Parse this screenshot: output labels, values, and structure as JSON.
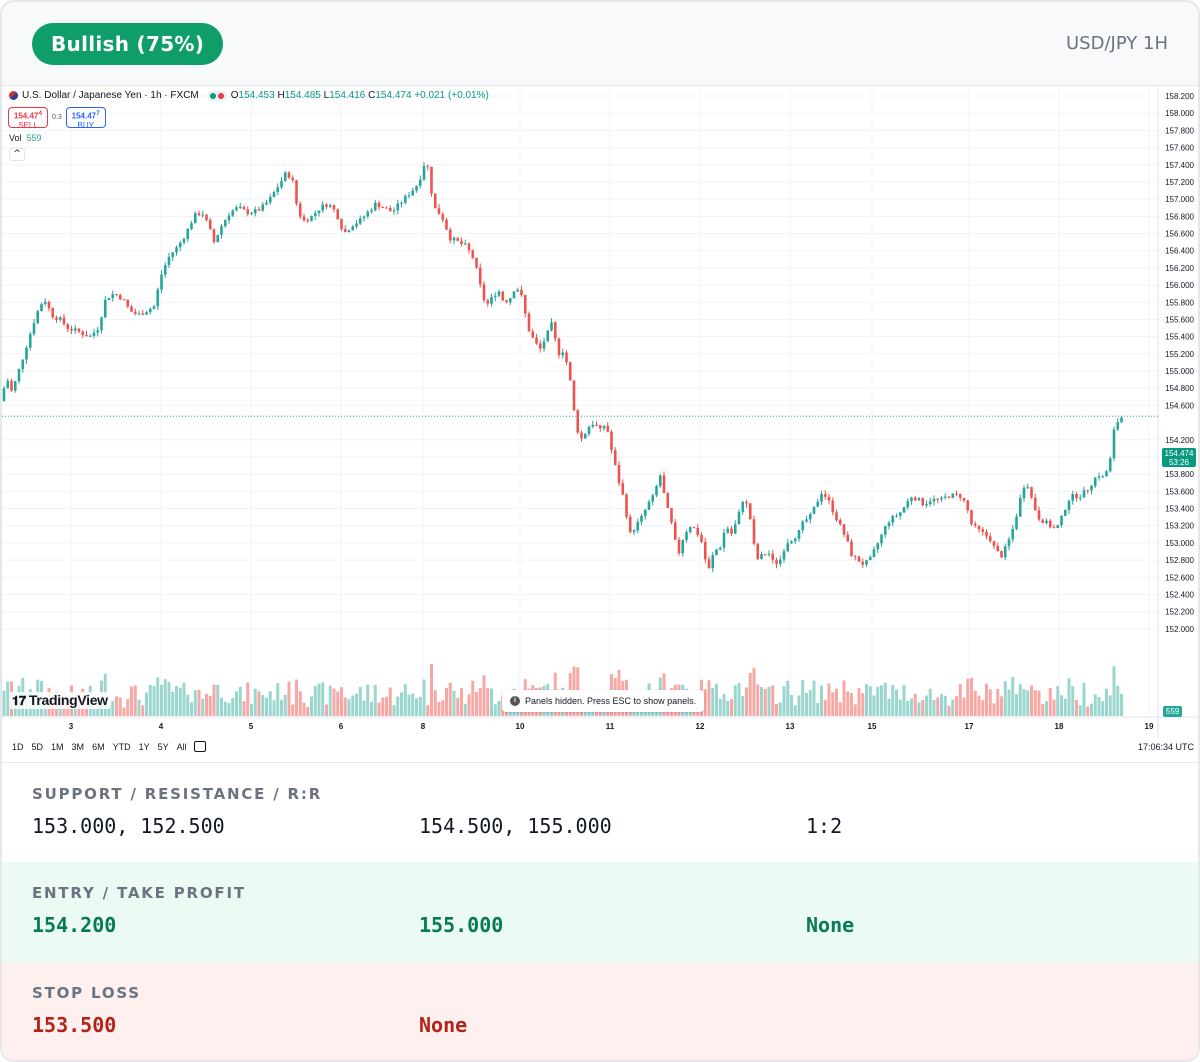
{
  "header": {
    "signal_label": "Bullish (75%)",
    "pair_label": "USD/JPY 1H",
    "accent_color": "#0f9d6a"
  },
  "chart_widget": {
    "symbol_title": "U.S. Dollar / Japanese Yen · 1h · FXCM",
    "ohlc": {
      "open_label": "O",
      "open": "154.453",
      "high_label": "H",
      "high": "154.485",
      "low_label": "L",
      "low": "154.416",
      "close_label": "C",
      "close": "154.474",
      "change": "+0.021 (+0.01%)"
    },
    "sell": {
      "price": "154.47",
      "price_sup": "4",
      "label": "SELL"
    },
    "spread": "0.3",
    "buy": {
      "price": "154.47",
      "price_sup": "7",
      "label": "BUY"
    },
    "volume": {
      "label": "Vol",
      "value": "559"
    },
    "collapse_icon": "chevron-up-icon",
    "logo_text": "TradingView",
    "notice": "Panels hidden. Press ESC to show panels.",
    "timeframes": [
      "1D",
      "5D",
      "1M",
      "3M",
      "6M",
      "YTD",
      "1Y",
      "5Y",
      "All"
    ],
    "clock": "17:06:34 UTC",
    "last_price_tag": {
      "price": "154.474",
      "countdown": "53:26"
    },
    "volume_tag": "559",
    "up_color": "#26a69a",
    "down_color": "#ef5350"
  },
  "chart_data": {
    "type": "candlestick",
    "title": "U.S. Dollar / Japanese Yen · 1h · FXCM",
    "y_ticks": [
      "158.200",
      "158.000",
      "157.800",
      "157.600",
      "157.400",
      "157.200",
      "157.000",
      "156.800",
      "156.600",
      "156.400",
      "156.200",
      "156.000",
      "155.800",
      "155.600",
      "155.400",
      "155.200",
      "155.000",
      "154.800",
      "154.600",
      "154.200",
      "154.000",
      "153.800",
      "153.600",
      "153.400",
      "153.200",
      "153.000",
      "152.800",
      "152.600",
      "152.400",
      "152.200",
      "152.000"
    ],
    "x_ticks": [
      "3",
      "4",
      "5",
      "6",
      "8",
      "10",
      "11",
      "12",
      "13",
      "15",
      "17",
      "18",
      "19"
    ],
    "ylim": [
      151.8,
      158.2
    ],
    "last_price": 154.474,
    "price_path": [
      [
        0,
        154.65
      ],
      [
        4,
        154.95
      ],
      [
        10,
        154.75
      ],
      [
        18,
        155.05
      ],
      [
        26,
        155.35
      ],
      [
        34,
        155.65
      ],
      [
        42,
        155.85
      ],
      [
        50,
        155.65
      ],
      [
        58,
        155.6
      ],
      [
        66,
        155.5
      ],
      [
        78,
        155.45
      ],
      [
        88,
        155.4
      ],
      [
        96,
        155.5
      ],
      [
        104,
        155.85
      ],
      [
        112,
        155.9
      ],
      [
        120,
        155.85
      ],
      [
        128,
        155.7
      ],
      [
        136,
        155.65
      ],
      [
        144,
        155.7
      ],
      [
        152,
        155.75
      ],
      [
        160,
        156.15
      ],
      [
        168,
        156.35
      ],
      [
        176,
        156.45
      ],
      [
        184,
        156.6
      ],
      [
        192,
        156.8
      ],
      [
        200,
        156.85
      ],
      [
        206,
        156.7
      ],
      [
        212,
        156.5
      ],
      [
        220,
        156.7
      ],
      [
        228,
        156.85
      ],
      [
        236,
        156.9
      ],
      [
        244,
        156.85
      ],
      [
        252,
        156.85
      ],
      [
        260,
        156.9
      ],
      [
        268,
        157.0
      ],
      [
        276,
        157.15
      ],
      [
        284,
        157.3
      ],
      [
        290,
        157.25
      ],
      [
        296,
        156.85
      ],
      [
        302,
        156.75
      ],
      [
        310,
        156.8
      ],
      [
        318,
        156.9
      ],
      [
        326,
        156.95
      ],
      [
        334,
        156.85
      ],
      [
        342,
        156.6
      ],
      [
        350,
        156.7
      ],
      [
        358,
        156.75
      ],
      [
        366,
        156.85
      ],
      [
        374,
        156.95
      ],
      [
        382,
        156.9
      ],
      [
        390,
        156.85
      ],
      [
        398,
        156.95
      ],
      [
        406,
        157.05
      ],
      [
        414,
        157.15
      ],
      [
        420,
        157.3
      ],
      [
        424,
        157.5
      ],
      [
        428,
        157.2
      ],
      [
        432,
        156.9
      ],
      [
        440,
        156.8
      ],
      [
        448,
        156.55
      ],
      [
        456,
        156.5
      ],
      [
        464,
        156.45
      ],
      [
        472,
        156.3
      ],
      [
        478,
        156.0
      ],
      [
        484,
        155.75
      ],
      [
        490,
        155.85
      ],
      [
        496,
        155.95
      ],
      [
        502,
        155.8
      ],
      [
        508,
        155.85
      ],
      [
        514,
        156.0
      ],
      [
        520,
        155.85
      ],
      [
        526,
        155.5
      ],
      [
        532,
        155.35
      ],
      [
        538,
        155.25
      ],
      [
        544,
        155.4
      ],
      [
        550,
        155.55
      ],
      [
        556,
        155.2
      ],
      [
        562,
        155.25
      ],
      [
        568,
        154.9
      ],
      [
        574,
        154.35
      ],
      [
        580,
        154.2
      ],
      [
        586,
        154.35
      ],
      [
        592,
        154.4
      ],
      [
        598,
        154.3
      ],
      [
        604,
        154.4
      ],
      [
        610,
        154.05
      ],
      [
        616,
        153.75
      ],
      [
        622,
        153.5
      ],
      [
        628,
        153.1
      ],
      [
        634,
        153.2
      ],
      [
        640,
        153.3
      ],
      [
        646,
        153.45
      ],
      [
        652,
        153.55
      ],
      [
        658,
        153.8
      ],
      [
        664,
        153.45
      ],
      [
        670,
        153.2
      ],
      [
        676,
        152.85
      ],
      [
        682,
        153.1
      ],
      [
        688,
        153.2
      ],
      [
        694,
        153.15
      ],
      [
        700,
        153.0
      ],
      [
        706,
        152.65
      ],
      [
        712,
        152.9
      ],
      [
        718,
        152.95
      ],
      [
        724,
        153.2
      ],
      [
        730,
        153.1
      ],
      [
        736,
        153.3
      ],
      [
        742,
        153.55
      ],
      [
        748,
        153.3
      ],
      [
        754,
        152.8
      ],
      [
        760,
        152.85
      ],
      [
        766,
        152.9
      ],
      [
        772,
        152.75
      ],
      [
        778,
        152.8
      ],
      [
        784,
        153.0
      ],
      [
        790,
        153.05
      ],
      [
        796,
        153.1
      ],
      [
        802,
        153.25
      ],
      [
        808,
        153.3
      ],
      [
        814,
        153.45
      ],
      [
        820,
        153.6
      ],
      [
        826,
        153.5
      ],
      [
        832,
        153.35
      ],
      [
        838,
        153.2
      ],
      [
        844,
        153.05
      ],
      [
        850,
        152.85
      ],
      [
        856,
        152.8
      ],
      [
        862,
        152.75
      ],
      [
        868,
        152.8
      ],
      [
        874,
        152.95
      ],
      [
        880,
        153.1
      ],
      [
        886,
        153.25
      ],
      [
        892,
        153.3
      ],
      [
        898,
        153.35
      ],
      [
        904,
        153.45
      ],
      [
        910,
        153.55
      ],
      [
        916,
        153.5
      ],
      [
        922,
        153.45
      ],
      [
        928,
        153.5
      ],
      [
        934,
        153.5
      ],
      [
        940,
        153.5
      ],
      [
        946,
        153.55
      ],
      [
        952,
        153.55
      ],
      [
        958,
        153.55
      ],
      [
        964,
        153.45
      ],
      [
        970,
        153.2
      ],
      [
        976,
        153.15
      ],
      [
        982,
        153.1
      ],
      [
        988,
        153.05
      ],
      [
        994,
        152.9
      ],
      [
        1000,
        152.85
      ],
      [
        1006,
        153.0
      ],
      [
        1012,
        153.2
      ],
      [
        1018,
        153.5
      ],
      [
        1024,
        153.75
      ],
      [
        1030,
        153.5
      ],
      [
        1036,
        153.3
      ],
      [
        1042,
        153.25
      ],
      [
        1048,
        153.2
      ],
      [
        1054,
        153.15
      ],
      [
        1060,
        153.3
      ],
      [
        1066,
        153.5
      ],
      [
        1072,
        153.55
      ],
      [
        1078,
        153.55
      ],
      [
        1084,
        153.6
      ],
      [
        1090,
        153.7
      ],
      [
        1096,
        153.8
      ],
      [
        1102,
        153.75
      ],
      [
        1108,
        153.95
      ],
      [
        1112,
        154.3
      ],
      [
        1116,
        154.42
      ],
      [
        1120,
        154.47
      ]
    ]
  },
  "levels": {
    "row1_label": "SUPPORT / RESISTANCE / R:R",
    "support": "153.000, 152.500",
    "resistance": "154.500, 155.000",
    "rr": "1:2",
    "row2_label": "ENTRY / TAKE PROFIT",
    "entry": "154.200",
    "take_profit": "155.000",
    "take_profit_2": "None",
    "row3_label": "STOP LOSS",
    "stop_loss": "153.500",
    "stop_loss_2": "None"
  }
}
